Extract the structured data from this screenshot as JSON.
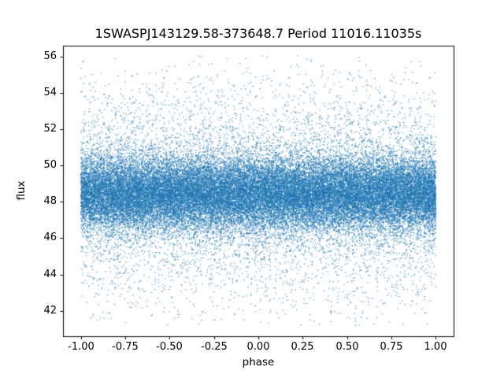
{
  "chart_data": {
    "type": "scatter",
    "title": "1SWASPJ143129.58-373648.7 Period 11016.11035s",
    "xlabel": "phase",
    "ylabel": "flux",
    "xlim": [
      -1.1,
      1.1
    ],
    "ylim": [
      40.6,
      56.6
    ],
    "x_ticks": {
      "values": [
        -1.0,
        -0.75,
        -0.5,
        -0.25,
        0.0,
        0.25,
        0.5,
        0.75,
        1.0
      ],
      "labels": [
        "-1.00",
        "-0.75",
        "-0.50",
        "-0.25",
        "0.00",
        "0.25",
        "0.50",
        "0.75",
        "1.00"
      ]
    },
    "y_ticks": {
      "values": [
        42,
        44,
        46,
        48,
        50,
        52,
        54,
        56
      ],
      "labels": [
        "42",
        "44",
        "46",
        "48",
        "50",
        "52",
        "54",
        "56"
      ]
    },
    "grid": false,
    "legend": null,
    "marker": {
      "color": "#1f77b4",
      "size": 1,
      "alpha": 0.85
    },
    "point_cloud": {
      "description": "Dense noise band of flux measurements folded on the period; uniform in phase, Gaussian-mixture in flux.",
      "n_points": 45000,
      "seed": 7,
      "x_distribution": {
        "type": "uniform",
        "min": -1.0,
        "max": 1.0
      },
      "y_distribution": {
        "type": "gaussian_mixture",
        "components": [
          {
            "weight": 0.8,
            "mean": 48.45,
            "std": 1.0
          },
          {
            "weight": 0.2,
            "mean": 48.45,
            "std": 2.9
          }
        ]
      },
      "y_range_visible": [
        41.2,
        56.1
      ]
    },
    "background": "#ffffff",
    "frame_color": "#000000"
  }
}
